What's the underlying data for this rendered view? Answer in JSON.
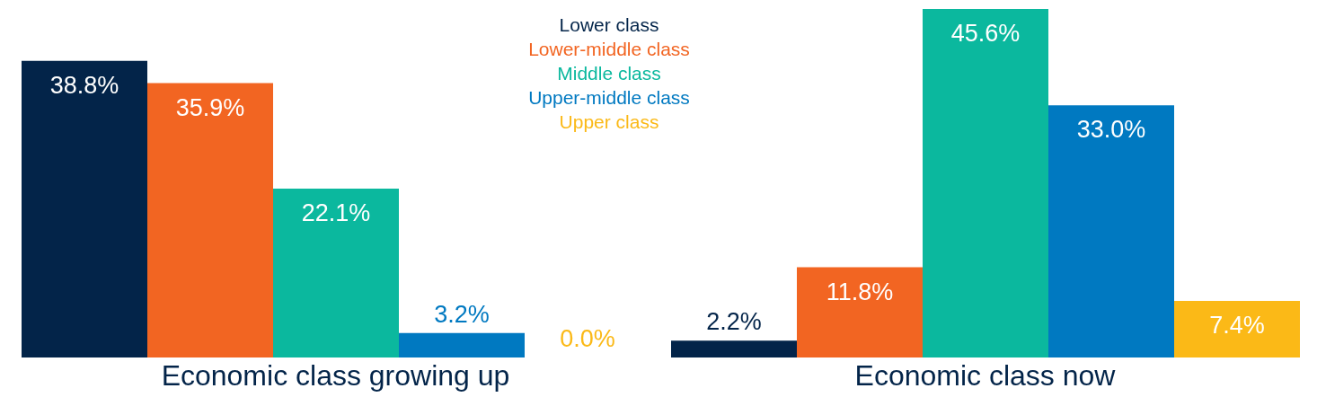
{
  "chart_data": {
    "type": "bar",
    "categories": [
      "Economic class growing up",
      "Economic class now"
    ],
    "series": [
      {
        "name": "Lower class",
        "color": "#032449",
        "values": [
          38.8,
          2.2
        ],
        "value_labels": [
          "38.8%",
          "2.2%"
        ]
      },
      {
        "name": "Lower-middle class",
        "color": "#f26522",
        "values": [
          35.9,
          11.8
        ],
        "value_labels": [
          "35.9%",
          "11.8%"
        ]
      },
      {
        "name": "Middle class",
        "color": "#0bb89e",
        "values": [
          22.1,
          45.6
        ],
        "value_labels": [
          "22.1%",
          "45.6%"
        ]
      },
      {
        "name": "Upper-middle class",
        "color": "#0079c1",
        "values": [
          3.2,
          33.0
        ],
        "value_labels": [
          "3.2%",
          "33.0%"
        ]
      },
      {
        "name": "Upper class",
        "color": "#fbb917",
        "values": [
          0.0,
          7.4
        ],
        "value_labels": [
          "0.0%",
          "7.4%"
        ]
      }
    ],
    "legend": "top"
  }
}
